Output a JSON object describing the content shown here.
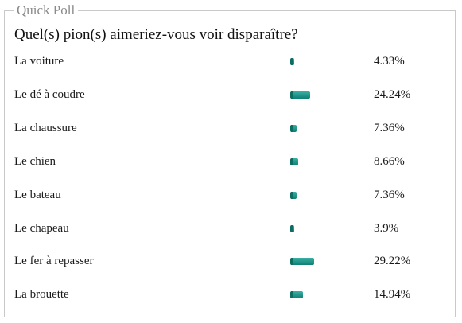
{
  "poll": {
    "title": "Quick Poll",
    "question": "Quel(s) pion(s) aimeriez-vous voir disparaître?",
    "bar_color": "#1a8f82",
    "options": [
      {
        "label": "La voiture",
        "percent_text": "4.33%",
        "percent": 4.33
      },
      {
        "label": "Le dé à coudre",
        "percent_text": "24.24%",
        "percent": 24.24
      },
      {
        "label": "La chaussure",
        "percent_text": "7.36%",
        "percent": 7.36
      },
      {
        "label": "Le chien",
        "percent_text": "8.66%",
        "percent": 8.66
      },
      {
        "label": "Le bateau",
        "percent_text": "7.36%",
        "percent": 7.36
      },
      {
        "label": "Le chapeau",
        "percent_text": "3.9%",
        "percent": 3.9
      },
      {
        "label": "Le fer à repasser",
        "percent_text": "29.22%",
        "percent": 29.22
      },
      {
        "label": "La brouette",
        "percent_text": "14.94%",
        "percent": 14.94
      }
    ]
  }
}
